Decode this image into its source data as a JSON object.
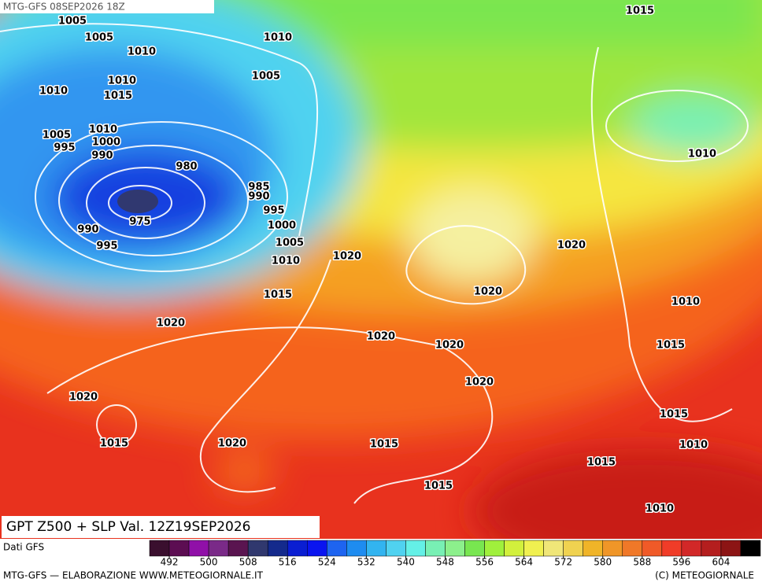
{
  "header": {
    "run": "MTG-GFS 08SEP2026 18Z"
  },
  "map": {
    "title": "GPT Z500 + SLP Val. 12Z19SEP2026",
    "isobar_labels": [
      1005,
      1005,
      1010,
      1010,
      1015,
      1005,
      1010,
      1010,
      1015,
      1005,
      1010,
      995,
      1000,
      990,
      980,
      985,
      990,
      995,
      975,
      1000,
      990,
      1005,
      995,
      1010,
      1020,
      1020,
      1010,
      1015,
      1020,
      1010,
      1020,
      1020,
      1020,
      1015,
      1020,
      1020,
      1015,
      1015,
      1020,
      1015,
      1010,
      1015,
      1015,
      1010
    ]
  },
  "legend": {
    "source": "Dati GFS",
    "range": [
      488,
      612
    ],
    "ticks": [
      492,
      500,
      508,
      516,
      524,
      532,
      540,
      548,
      556,
      564,
      572,
      580,
      588,
      596,
      604
    ],
    "colors": [
      "#3a0f2e",
      "#5c0d52",
      "#9010a8",
      "#7a2a88",
      "#5a1450",
      "#30386e",
      "#142a8c",
      "#0a1ed2",
      "#0a14f0",
      "#1e64f0",
      "#1e8cf0",
      "#32b4f0",
      "#50d2f0",
      "#64f0e6",
      "#78f0b4",
      "#8cf08c",
      "#78e650",
      "#a0f03c",
      "#d2f03c",
      "#f0f050",
      "#f0e678",
      "#f0d250",
      "#f0b428",
      "#f09628",
      "#f07828",
      "#f05a28",
      "#f03c28",
      "#d22828",
      "#b41e1e",
      "#8c1414",
      "#000000"
    ]
  },
  "footer": {
    "left": "MTG-GFS — ELABORAZIONE WWW.METEOGIORNALE.IT",
    "right": "(C) METEOGIORNALE"
  }
}
